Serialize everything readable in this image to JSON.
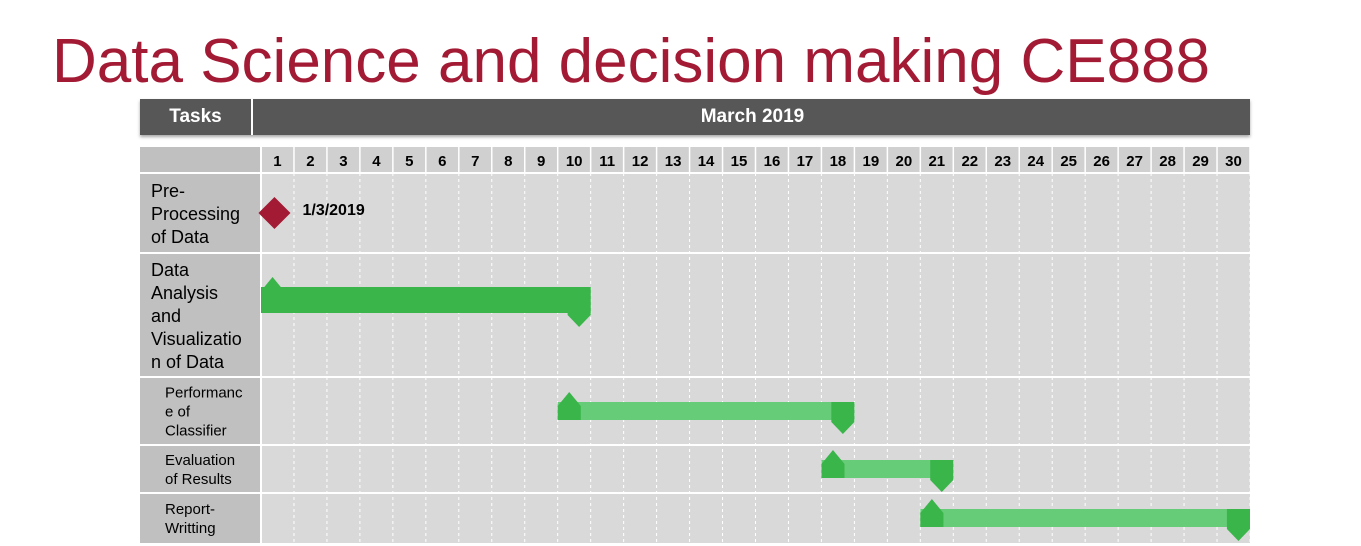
{
  "title": "Data Science and decision making CE888",
  "header": {
    "tasks_label": "Tasks",
    "month_label": "March 2019"
  },
  "days": [
    1,
    2,
    3,
    4,
    5,
    6,
    7,
    8,
    9,
    10,
    11,
    12,
    13,
    14,
    15,
    16,
    17,
    18,
    19,
    20,
    21,
    22,
    23,
    24,
    25,
    26,
    27,
    28,
    29,
    30
  ],
  "colors": {
    "title": "#a31a34",
    "header": "#575757",
    "bar_dark": "#3ab54a",
    "bar_light": "#66cc77",
    "milestone": "#a31a34",
    "grid_bg": "#d9d9d9",
    "label_col": "#c0c0c0"
  },
  "chart_data": {
    "type": "gantt",
    "x_unit": "day of March 2019",
    "xlim": [
      1,
      30
    ],
    "tasks": [
      {
        "name": "Pre-\nProcessing\nof Data",
        "type": "milestone",
        "day": 1,
        "label": "1/3/2019"
      },
      {
        "name": "Data\nAnalysis\nand\nVisualizatio\nn of Data",
        "type": "bar",
        "start": 1,
        "end": 10
      },
      {
        "name": "Performanc\ne of\nClassifier",
        "type": "bar",
        "start": 10,
        "end": 18
      },
      {
        "name": "Evaluation\nof Results",
        "type": "bar",
        "start": 18,
        "end": 21
      },
      {
        "name": "Report-\nWritting",
        "type": "bar",
        "start": 21,
        "end": 30
      }
    ]
  }
}
